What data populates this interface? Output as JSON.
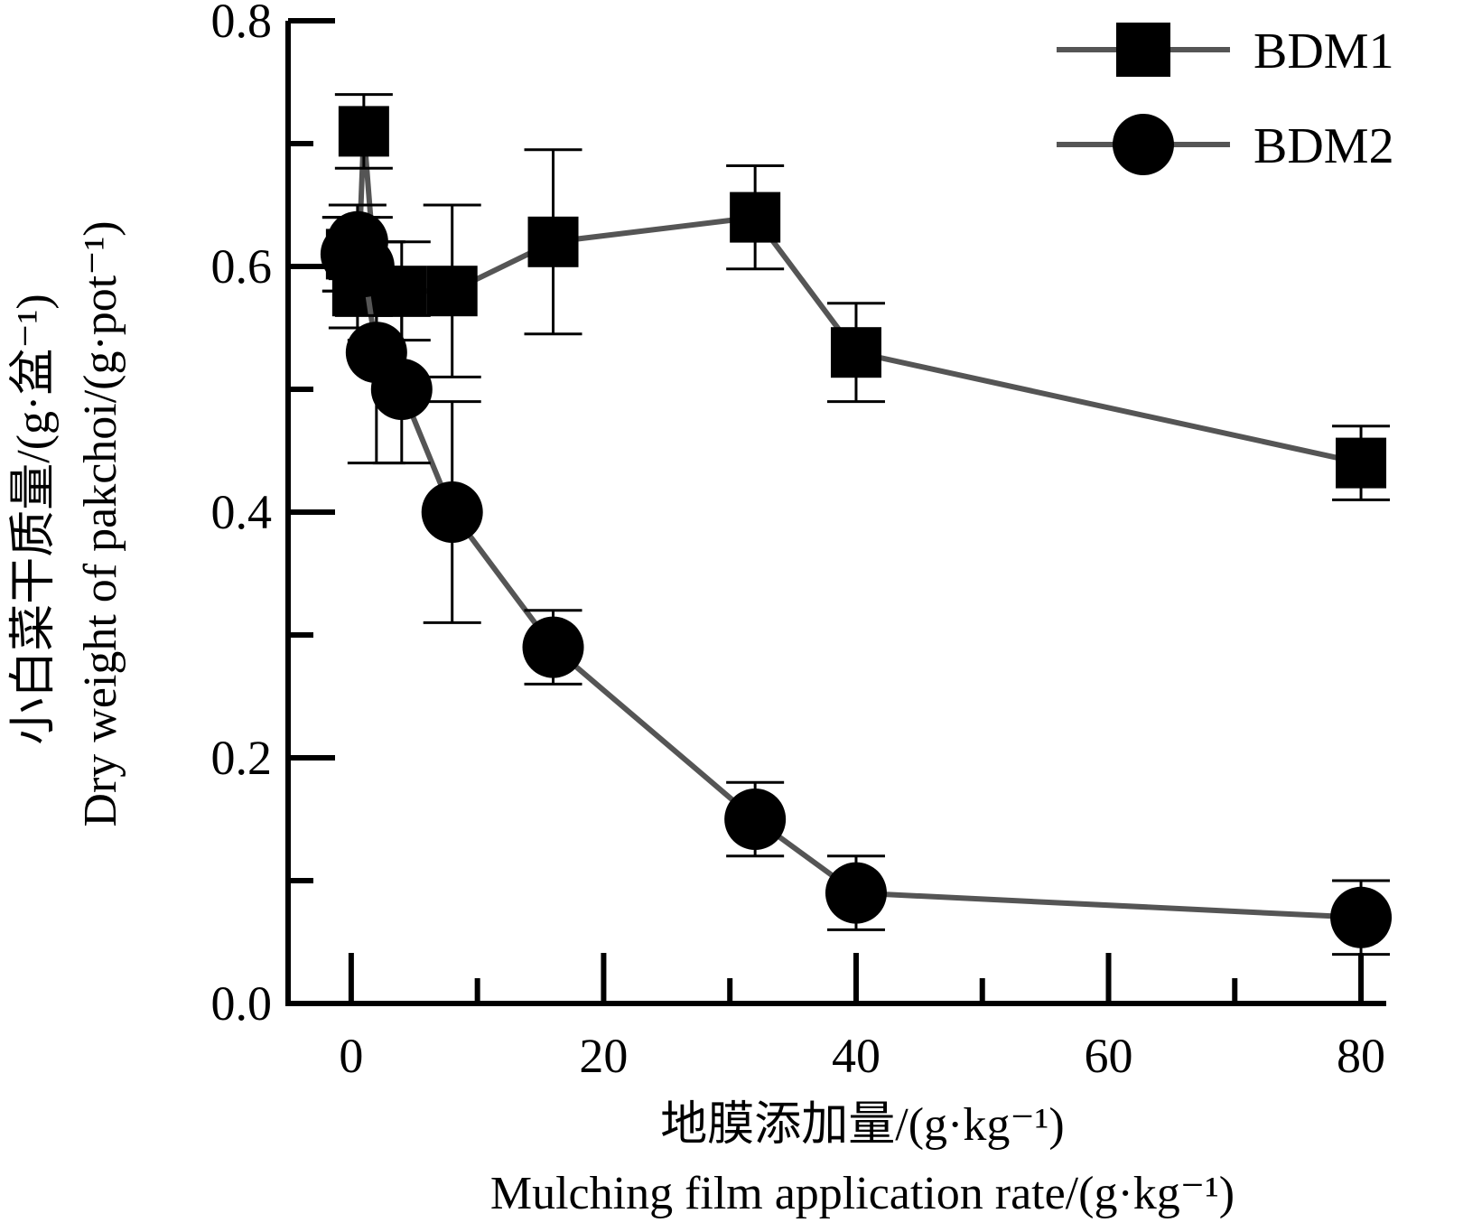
{
  "chart_data": {
    "type": "line",
    "xlabel_cn": "地膜添加量/(g·kg⁻¹)",
    "xlabel_en": "Mulching film application rate/(g·kg⁻¹)",
    "ylabel_cn": "小白菜干质量/(g·盆⁻¹)",
    "ylabel_en": "Dry weight of pakchoi/(g·pot⁻¹)",
    "xlim": [
      -5,
      82
    ],
    "ylim": [
      0,
      0.8
    ],
    "x_ticks": [
      0,
      20,
      40,
      60,
      80
    ],
    "x_minor_ticks": [
      10,
      30,
      50,
      70
    ],
    "y_ticks": [
      0.0,
      0.2,
      0.4,
      0.6,
      0.8
    ],
    "y_tick_labels": [
      "0.0",
      "0.2",
      "0.4",
      "0.6",
      "0.8"
    ],
    "y_minor_ticks": [
      0.1,
      0.3,
      0.5,
      0.7
    ],
    "legend_position": "top-right",
    "line_color": "#555555",
    "marker_color": "#000000",
    "series": [
      {
        "name": "BDM1",
        "marker": "square",
        "x": [
          0,
          0.5,
          1,
          2,
          4,
          8,
          16,
          32,
          40,
          80
        ],
        "y": [
          0.61,
          0.58,
          0.71,
          0.58,
          0.58,
          0.58,
          0.62,
          0.64,
          0.53,
          0.44
        ],
        "err": [
          0.03,
          0.03,
          0.03,
          0.04,
          0.04,
          0.07,
          0.075,
          0.042,
          0.04,
          0.03
        ]
      },
      {
        "name": "BDM2",
        "marker": "circle",
        "x": [
          0,
          0.5,
          1,
          2,
          4,
          8,
          16,
          32,
          40,
          80
        ],
        "y": [
          0.61,
          0.62,
          0.6,
          0.53,
          0.5,
          0.4,
          0.29,
          0.15,
          0.09,
          0.07
        ],
        "err": [
          0.03,
          0.03,
          0.04,
          0.09,
          0.06,
          0.09,
          0.03,
          0.03,
          0.03,
          0.03
        ]
      }
    ]
  }
}
